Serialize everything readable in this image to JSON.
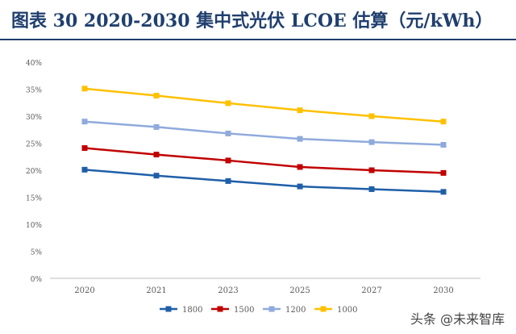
{
  "title": "图表 30   2020-2030 集中式光伏 LCOE 估算（元/kWh）",
  "watermark": "头条 @未来智库",
  "chart_data": {
    "type": "line",
    "title": "图表 30   2020-2030 集中式光伏 LCOE 估算（元/kWh）",
    "categories": [
      "2020",
      "2021",
      "2023",
      "2025",
      "2027",
      "2030"
    ],
    "y_ticks": [
      "0%",
      "5%",
      "10%",
      "15%",
      "20%",
      "25%",
      "30%",
      "35%",
      "40%"
    ],
    "ylim": [
      0,
      0.4
    ],
    "grid": false,
    "legend_position": "bottom",
    "series": [
      {
        "name": "1800",
        "color": "#1f5fa8",
        "values": [
          0.201,
          0.19,
          0.18,
          0.17,
          0.165,
          0.16
        ]
      },
      {
        "name": "1500",
        "color": "#c00000",
        "values": [
          0.241,
          0.229,
          0.218,
          0.206,
          0.2,
          0.195
        ]
      },
      {
        "name": "1200",
        "color": "#8faadc",
        "values": [
          0.29,
          0.28,
          0.268,
          0.258,
          0.252,
          0.247
        ]
      },
      {
        "name": "1000",
        "color": "#ffc000",
        "values": [
          0.351,
          0.338,
          0.324,
          0.311,
          0.3,
          0.29
        ]
      }
    ]
  }
}
